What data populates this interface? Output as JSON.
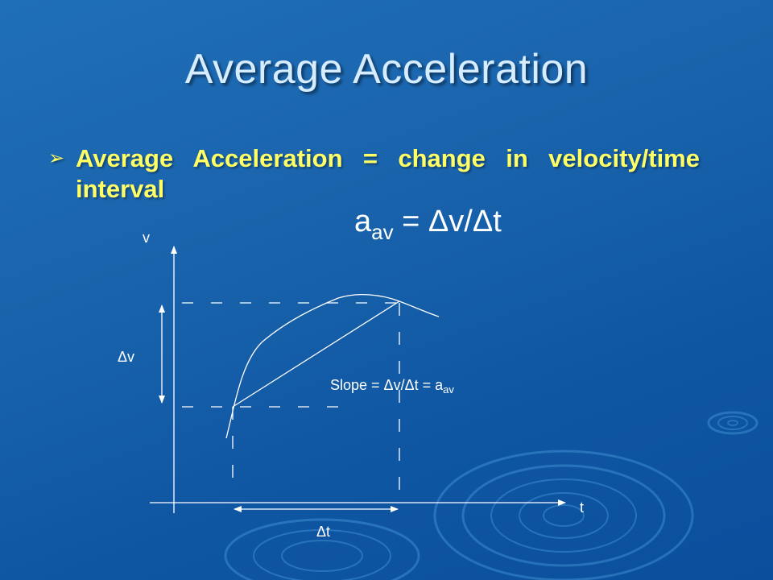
{
  "slide": {
    "title": "Average Acceleration",
    "bullet": "Average Acceleration = change in velocity/time interval"
  },
  "formula": {
    "lhs_var": "a",
    "lhs_sub": "av",
    "rhs": "= Δv/Δt"
  },
  "diagram": {
    "v_axis_label": "v",
    "t_axis_label": "t",
    "delta_v_label": "Δv",
    "delta_t_label": "Δt",
    "slope_prefix": "Slope = Δv/Δt = a",
    "slope_sub": "av"
  },
  "colors": {
    "title": "#d6ecff",
    "bullet": "#ffff66",
    "lines": "#ffffff"
  },
  "icons": {
    "bullet": "arrowhead-bullet-icon"
  }
}
